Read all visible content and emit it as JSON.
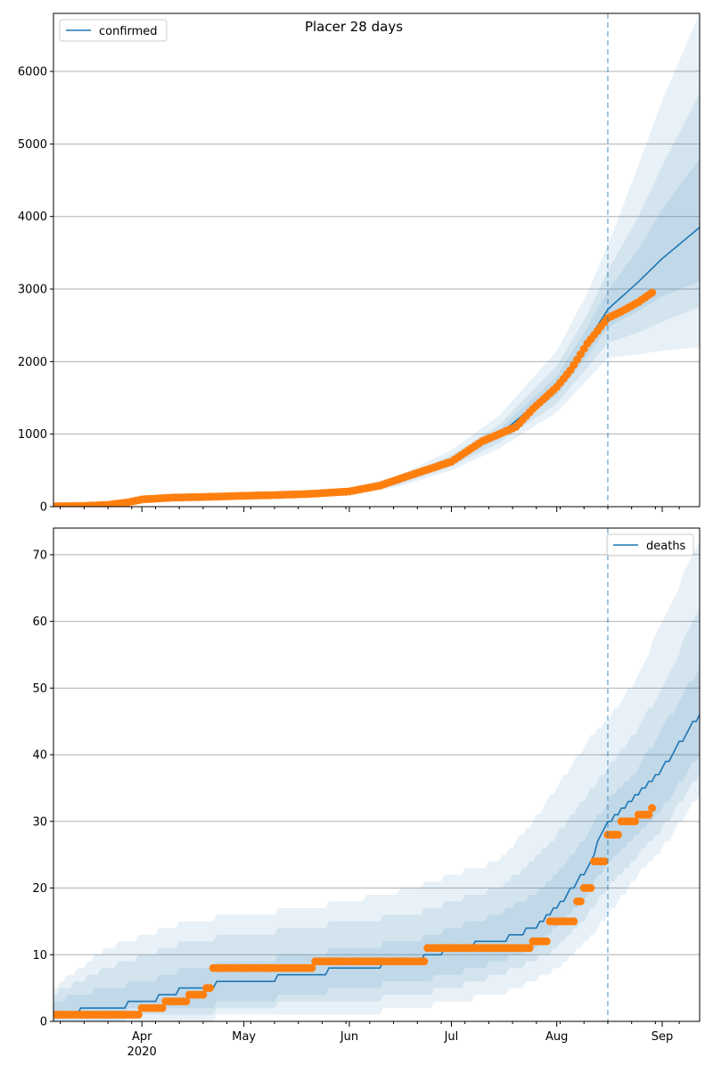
{
  "figure": {
    "title": "Placer 28 days",
    "colors": {
      "model_line": "#1f77b4",
      "band": "#1f77b4",
      "observed": "#ff7f0e",
      "grid": "#b0b0b0",
      "cutoff_line": "#1f77b4"
    }
  },
  "chart_data": [
    {
      "type": "line",
      "legend": [
        "confirmed"
      ],
      "legend_position": "top-left",
      "grid": "horizontal",
      "x_axis": {
        "range": [
          "2020-03-06",
          "2020-09-12"
        ],
        "tick_labels": [
          "Apr\n2020",
          "May",
          "Jun",
          "Jul",
          "Aug",
          "Sep"
        ],
        "tick_dates": [
          "2020-04-01",
          "2020-05-01",
          "2020-06-01",
          "2020-07-01",
          "2020-08-01",
          "2020-09-01"
        ]
      },
      "y_axis": {
        "range": [
          0,
          6800
        ],
        "ticks": [
          0,
          1000,
          2000,
          3000,
          4000,
          5000,
          6000
        ]
      },
      "forecast_start": "2020-08-16",
      "model": {
        "name": "confirmed",
        "x": [
          "2020-03-06",
          "2020-03-20",
          "2020-04-01",
          "2020-04-15",
          "2020-05-01",
          "2020-05-15",
          "2020-06-01",
          "2020-06-15",
          "2020-07-01",
          "2020-07-15",
          "2020-08-01",
          "2020-08-10",
          "2020-08-16",
          "2020-08-25",
          "2020-09-01",
          "2020-09-12"
        ],
        "y": [
          5,
          25,
          90,
          130,
          155,
          175,
          210,
          330,
          620,
          990,
          1650,
          2270,
          2720,
          3100,
          3420,
          3850
        ],
        "bands": [
          {
            "lower": [
              0,
              5,
              60,
              100,
              125,
              145,
              175,
              270,
              500,
              800,
              1300,
              1750,
              2050,
              2100,
              2150,
              2200
            ],
            "upper": [
              20,
              60,
              130,
              170,
              195,
              215,
              260,
              420,
              780,
              1250,
              2150,
              2950,
              3600,
              4700,
              5600,
              6800
            ]
          },
          {
            "lower": [
              1,
              12,
              70,
              112,
              138,
              158,
              188,
              295,
              550,
              880,
              1420,
              1920,
              2260,
              2400,
              2550,
              2750
            ],
            "upper": [
              14,
              45,
              115,
              155,
              178,
              198,
              240,
              385,
              710,
              1130,
              1940,
              2650,
              3250,
              4000,
              4700,
              5700
            ]
          },
          {
            "lower": [
              3,
              18,
              80,
              122,
              148,
              168,
              200,
              315,
              590,
              940,
              1540,
              2080,
              2470,
              2700,
              2900,
              3100
            ],
            "upper": [
              9,
              35,
              102,
              142,
              166,
              186,
              225,
              355,
              665,
              1060,
              1800,
              2470,
              2980,
              3550,
              4100,
              4800
            ]
          }
        ]
      },
      "observed": {
        "x": [
          "2020-03-06",
          "2020-03-15",
          "2020-03-22",
          "2020-03-28",
          "2020-04-01",
          "2020-04-10",
          "2020-04-20",
          "2020-05-01",
          "2020-05-10",
          "2020-05-20",
          "2020-06-01",
          "2020-06-10",
          "2020-06-20",
          "2020-07-01",
          "2020-07-10",
          "2020-07-20",
          "2020-07-25",
          "2020-08-01",
          "2020-08-05",
          "2020-08-10",
          "2020-08-16",
          "2020-08-20",
          "2020-08-25",
          "2020-08-29"
        ],
        "y": [
          5,
          10,
          25,
          60,
          100,
          125,
          135,
          150,
          160,
          175,
          210,
          290,
          450,
          620,
          900,
          1100,
          1350,
          1650,
          1880,
          2250,
          2600,
          2690,
          2820,
          2950
        ]
      }
    },
    {
      "type": "line",
      "legend": [
        "deaths"
      ],
      "legend_position": "top-right",
      "grid": "horizontal",
      "x_axis": {
        "range": [
          "2020-03-06",
          "2020-09-12"
        ],
        "tick_labels": [
          "Apr\n2020",
          "May",
          "Jun",
          "Jul",
          "Aug",
          "Sep"
        ],
        "tick_dates": [
          "2020-04-01",
          "2020-05-01",
          "2020-06-01",
          "2020-07-01",
          "2020-08-01",
          "2020-09-01"
        ]
      },
      "y_axis": {
        "range": [
          0,
          74
        ],
        "ticks": [
          0,
          10,
          20,
          30,
          40,
          50,
          60,
          70
        ]
      },
      "forecast_start": "2020-08-16",
      "model": {
        "name": "deaths",
        "x": [
          "2020-03-06",
          "2020-03-22",
          "2020-04-02",
          "2020-04-15",
          "2020-05-01",
          "2020-05-20",
          "2020-06-01",
          "2020-06-20",
          "2020-07-01",
          "2020-07-15",
          "2020-07-25",
          "2020-08-01",
          "2020-08-10",
          "2020-08-16",
          "2020-08-25",
          "2020-09-01",
          "2020-09-12"
        ],
        "y": [
          1,
          2,
          3,
          5,
          6,
          7,
          8,
          9,
          11,
          12,
          14,
          17,
          23,
          30,
          34,
          38,
          46
        ],
        "bands": [
          {
            "lower": [
              0,
              0,
              0,
              0,
              1,
              1,
              1,
              2,
              3,
              4,
              6,
              8,
              12,
              16,
              22,
              26,
              34
            ],
            "upper": [
              5,
              11,
              13,
              15,
              16,
              17,
              18,
              20,
              22,
              24,
              30,
              35,
              42,
              45,
              52,
              60,
              72
            ]
          },
          {
            "lower": [
              0,
              0,
              1,
              1,
              2,
              3,
              3,
              4,
              5,
              7,
              9,
              11,
              16,
              20,
              25,
              29,
              37
            ],
            "upper": [
              4,
              8,
              10,
              12,
              13,
              14,
              15,
              16,
              18,
              20,
              24,
              28,
              34,
              38,
              44,
              50,
              62
            ]
          },
          {
            "lower": [
              1,
              1,
              2,
              2,
              3,
              4,
              5,
              6,
              7,
              9,
              11,
              14,
              19,
              24,
              28,
              32,
              40
            ],
            "upper": [
              3,
              5,
              6,
              8,
              9,
              10,
              11,
              12,
              14,
              16,
              19,
              22,
              28,
              33,
              38,
              44,
              53
            ]
          }
        ]
      },
      "observed": {
        "x": [
          "2020-03-06",
          "2020-03-31",
          "2020-04-01",
          "2020-04-08",
          "2020-04-15",
          "2020-04-20",
          "2020-04-22",
          "2020-05-01",
          "2020-05-21",
          "2020-05-22",
          "2020-06-15",
          "2020-06-20",
          "2020-06-24",
          "2020-07-01",
          "2020-07-20",
          "2020-07-25",
          "2020-07-30",
          "2020-08-03",
          "2020-08-07",
          "2020-08-09",
          "2020-08-12",
          "2020-08-16",
          "2020-08-20",
          "2020-08-25",
          "2020-08-29"
        ],
        "y": [
          1,
          1,
          2,
          3,
          4,
          5,
          8,
          8,
          8,
          9,
          9,
          9,
          11,
          11,
          11,
          12,
          15,
          15,
          18,
          20,
          24,
          28,
          30,
          31,
          32
        ]
      }
    }
  ]
}
